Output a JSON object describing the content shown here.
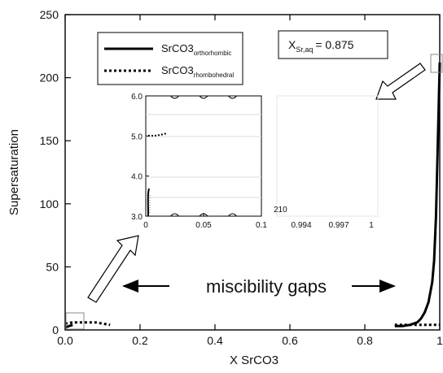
{
  "chart_data": {
    "type": "line",
    "title": "",
    "xlabel": "X SrCO3",
    "ylabel": "Supersaturation",
    "xlim": [
      0,
      1
    ],
    "ylim": [
      0,
      250
    ],
    "x_ticks": [
      "0.0",
      "0.2",
      "0.4",
      "0.6",
      "0.8",
      "1"
    ],
    "y_ticks": [
      "0",
      "50",
      "100",
      "150",
      "200",
      "250"
    ],
    "legend": {
      "placement": "top-left",
      "entries": [
        {
          "label": "SrCO3",
          "subscript": "orthorhombic",
          "style": "solid"
        },
        {
          "label": "SrCO3",
          "subscript": "rhombohedral",
          "style": "dotted"
        }
      ]
    },
    "composition_label": {
      "main": "X",
      "subscript": "Sr,aq",
      "value": "= 0.875"
    },
    "annotation": "miscibility gaps",
    "series": [
      {
        "name": "SrCO3 orthorhombic",
        "style": "solid",
        "x": [
          0.0,
          0.01,
          0.02,
          0.88,
          0.9,
          0.92,
          0.94,
          0.95,
          0.96,
          0.97,
          0.98,
          0.985,
          0.99,
          0.995,
          1.0
        ],
        "y": [
          2,
          3,
          4,
          3,
          3,
          4,
          6,
          9,
          14,
          22,
          38,
          55,
          90,
          150,
          212
        ]
      },
      {
        "name": "SrCO3 rhombohedral",
        "style": "dotted",
        "x": [
          0.0,
          0.02,
          0.04,
          0.06,
          0.08,
          0.1,
          0.12,
          0.88,
          0.92,
          0.96,
          1.0
        ],
        "y": [
          5,
          6,
          6,
          6,
          6,
          5,
          4,
          4,
          4,
          4,
          4
        ]
      }
    ],
    "inset_left": {
      "xlim": [
        0,
        0.1
      ],
      "ylim": [
        3.0,
        6.0
      ],
      "x_ticks": [
        "0",
        "0.05",
        "0.1"
      ],
      "y_ticks": [
        "3.0",
        "4.0",
        "5.0",
        "6.0"
      ]
    },
    "inset_right": {
      "y_tick": "210",
      "x_ticks": [
        "0.994",
        "0.997",
        "1"
      ]
    }
  }
}
